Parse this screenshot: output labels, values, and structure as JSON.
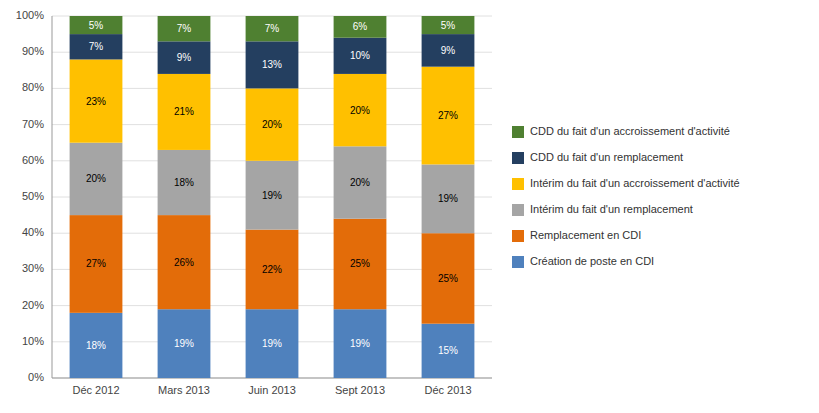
{
  "chart_data": {
    "type": "bar",
    "stacked": true,
    "data_labels": true,
    "grid": true,
    "legend": "right",
    "categories": [
      "Déc 2012",
      "Mars 2013",
      "Juin 2013",
      "Sept 2013",
      "Déc 2013"
    ],
    "series": [
      {
        "name": "Création de poste en CDI",
        "color": "#4F81BD",
        "values": [
          18,
          19,
          19,
          19,
          15
        ],
        "value_labels": [
          "18%",
          "19%",
          "19%",
          "19%",
          "15%"
        ]
      },
      {
        "name": "Remplacement en CDI",
        "color": "#E36C09",
        "values": [
          27,
          26,
          22,
          25,
          25
        ],
        "value_labels": [
          "27%",
          "26%",
          "22%",
          "25%",
          "25%"
        ]
      },
      {
        "name": "Intérim du fait d'un remplacement",
        "color": "#A5A5A5",
        "values": [
          20,
          18,
          19,
          20,
          19
        ],
        "value_labels": [
          "20%",
          "18%",
          "19%",
          "20%",
          "19%"
        ]
      },
      {
        "name": "Intérim du fait d'un accroissement d'activité",
        "color": "#FFC000",
        "values": [
          23,
          21,
          20,
          20,
          27
        ],
        "value_labels": [
          "23%",
          "21%",
          "20%",
          "20%",
          "27%"
        ]
      },
      {
        "name": "CDD du fait d'un remplacement",
        "color": "#243F60",
        "values": [
          7,
          9,
          13,
          10,
          9
        ],
        "value_labels": [
          "7%",
          "9%",
          "13%",
          "10%",
          "9%"
        ]
      },
      {
        "name": "CDD du fait d'un accroissement d'activité",
        "color": "#4F8031",
        "values": [
          5,
          7,
          7,
          6,
          5
        ],
        "value_labels": [
          "5%",
          "7%",
          "7%",
          "6%",
          "5%"
        ]
      }
    ],
    "ylim": [
      0,
      100
    ],
    "yticks": [
      {
        "value": 0,
        "label": "0%"
      },
      {
        "value": 10,
        "label": "10%"
      },
      {
        "value": 20,
        "label": "20%"
      },
      {
        "value": 30,
        "label": "30%"
      },
      {
        "value": 40,
        "label": "40%"
      },
      {
        "value": 50,
        "label": "50%"
      },
      {
        "value": 60,
        "label": "60%"
      },
      {
        "value": 70,
        "label": "70%"
      },
      {
        "value": 80,
        "label": "80%"
      },
      {
        "value": 90,
        "label": "90%"
      },
      {
        "value": 100,
        "label": "100%"
      }
    ]
  }
}
